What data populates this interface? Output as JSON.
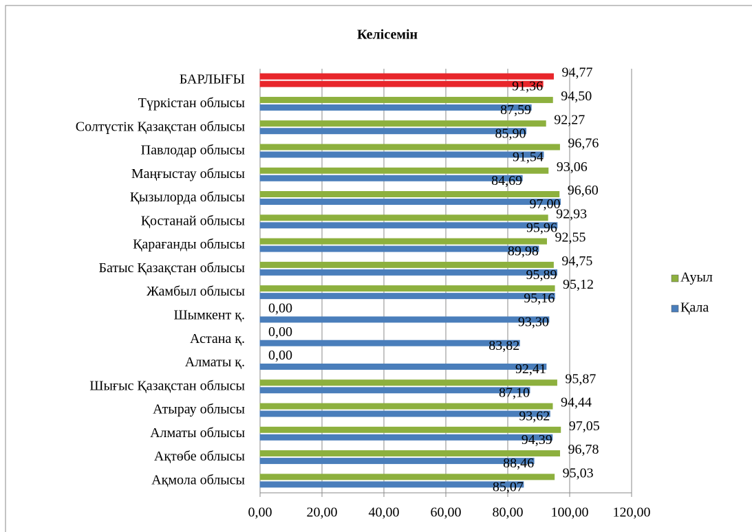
{
  "chart_data": {
    "type": "hbar",
    "title": "Келісемін",
    "categories": [
      "БАРЛЫҒЫ",
      "Түркістан облысы",
      "Солтүстік Қазақстан облысы",
      "Павлодар облысы",
      "Маңғыстау облысы",
      "Қызылорда облысы",
      "Қостанай облысы",
      "Қарағанды облысы",
      "Батыс Қазақстан облысы",
      "Жамбыл облысы",
      "Шымкент қ.",
      "Астана қ.",
      "Алматы қ.",
      "Шығыс Қазақстан облысы",
      "Атырау облысы",
      "Алматы облысы",
      "Ақтөбе облысы",
      "Ақмола облысы"
    ],
    "series": [
      {
        "name": "Ауыл",
        "color": "#8db03e",
        "point_colors": [
          "#e8262b",
          "#8db03e",
          "#8db03e",
          "#8db03e",
          "#8db03e",
          "#8db03e",
          "#8db03e",
          "#8db03e",
          "#8db03e",
          "#8db03e",
          "#8db03e",
          "#8db03e",
          "#8db03e",
          "#8db03e",
          "#8db03e",
          "#8db03e",
          "#8db03e",
          "#8db03e"
        ],
        "values": [
          94.77,
          94.5,
          92.27,
          96.76,
          93.06,
          96.6,
          92.93,
          92.55,
          94.75,
          95.12,
          0,
          0,
          0,
          95.87,
          94.44,
          97.05,
          96.78,
          95.03
        ],
        "value_labels": [
          "94,77",
          "94,50",
          "92,27",
          "96,76",
          "93,06",
          "96,60",
          "92,93",
          "92,55",
          "94,75",
          "95,12",
          "0,00",
          "0,00",
          "0,00",
          "95,87",
          "94,44",
          "97,05",
          "96,78",
          "95,03"
        ]
      },
      {
        "name": "Қала",
        "color": "#4a7ebb",
        "point_colors": [
          "#e8262b",
          "#4a7ebb",
          "#4a7ebb",
          "#4a7ebb",
          "#4a7ebb",
          "#4a7ebb",
          "#4a7ebb",
          "#4a7ebb",
          "#4a7ebb",
          "#4a7ebb",
          "#4a7ebb",
          "#4a7ebb",
          "#4a7ebb",
          "#4a7ebb",
          "#4a7ebb",
          "#4a7ebb",
          "#4a7ebb",
          "#4a7ebb"
        ],
        "values": [
          91.36,
          87.59,
          85.9,
          91.54,
          84.69,
          97.0,
          95.96,
          89.98,
          95.89,
          95.16,
          93.3,
          83.82,
          92.41,
          87.1,
          93.62,
          94.39,
          88.46,
          85.07
        ],
        "value_labels": [
          "91,36",
          "87,59",
          "85,90",
          "91,54",
          "84,69",
          "97,00",
          "95,96",
          "89,98",
          "95,89",
          "95,16",
          "93,30",
          "83,82",
          "92,41",
          "87,10",
          "93,62",
          "94,39",
          "88,46",
          "85,07"
        ]
      }
    ],
    "xlim": [
      0,
      120
    ],
    "xticks": [
      {
        "value": 0,
        "label": "0,00"
      },
      {
        "value": 20,
        "label": "20,00"
      },
      {
        "value": 40,
        "label": "40,00"
      },
      {
        "value": 60,
        "label": "60,00"
      },
      {
        "value": 80,
        "label": "80,00"
      },
      {
        "value": 100,
        "label": "100,00"
      },
      {
        "value": 120,
        "label": "120,00"
      }
    ],
    "grid": true,
    "legend": "right"
  }
}
